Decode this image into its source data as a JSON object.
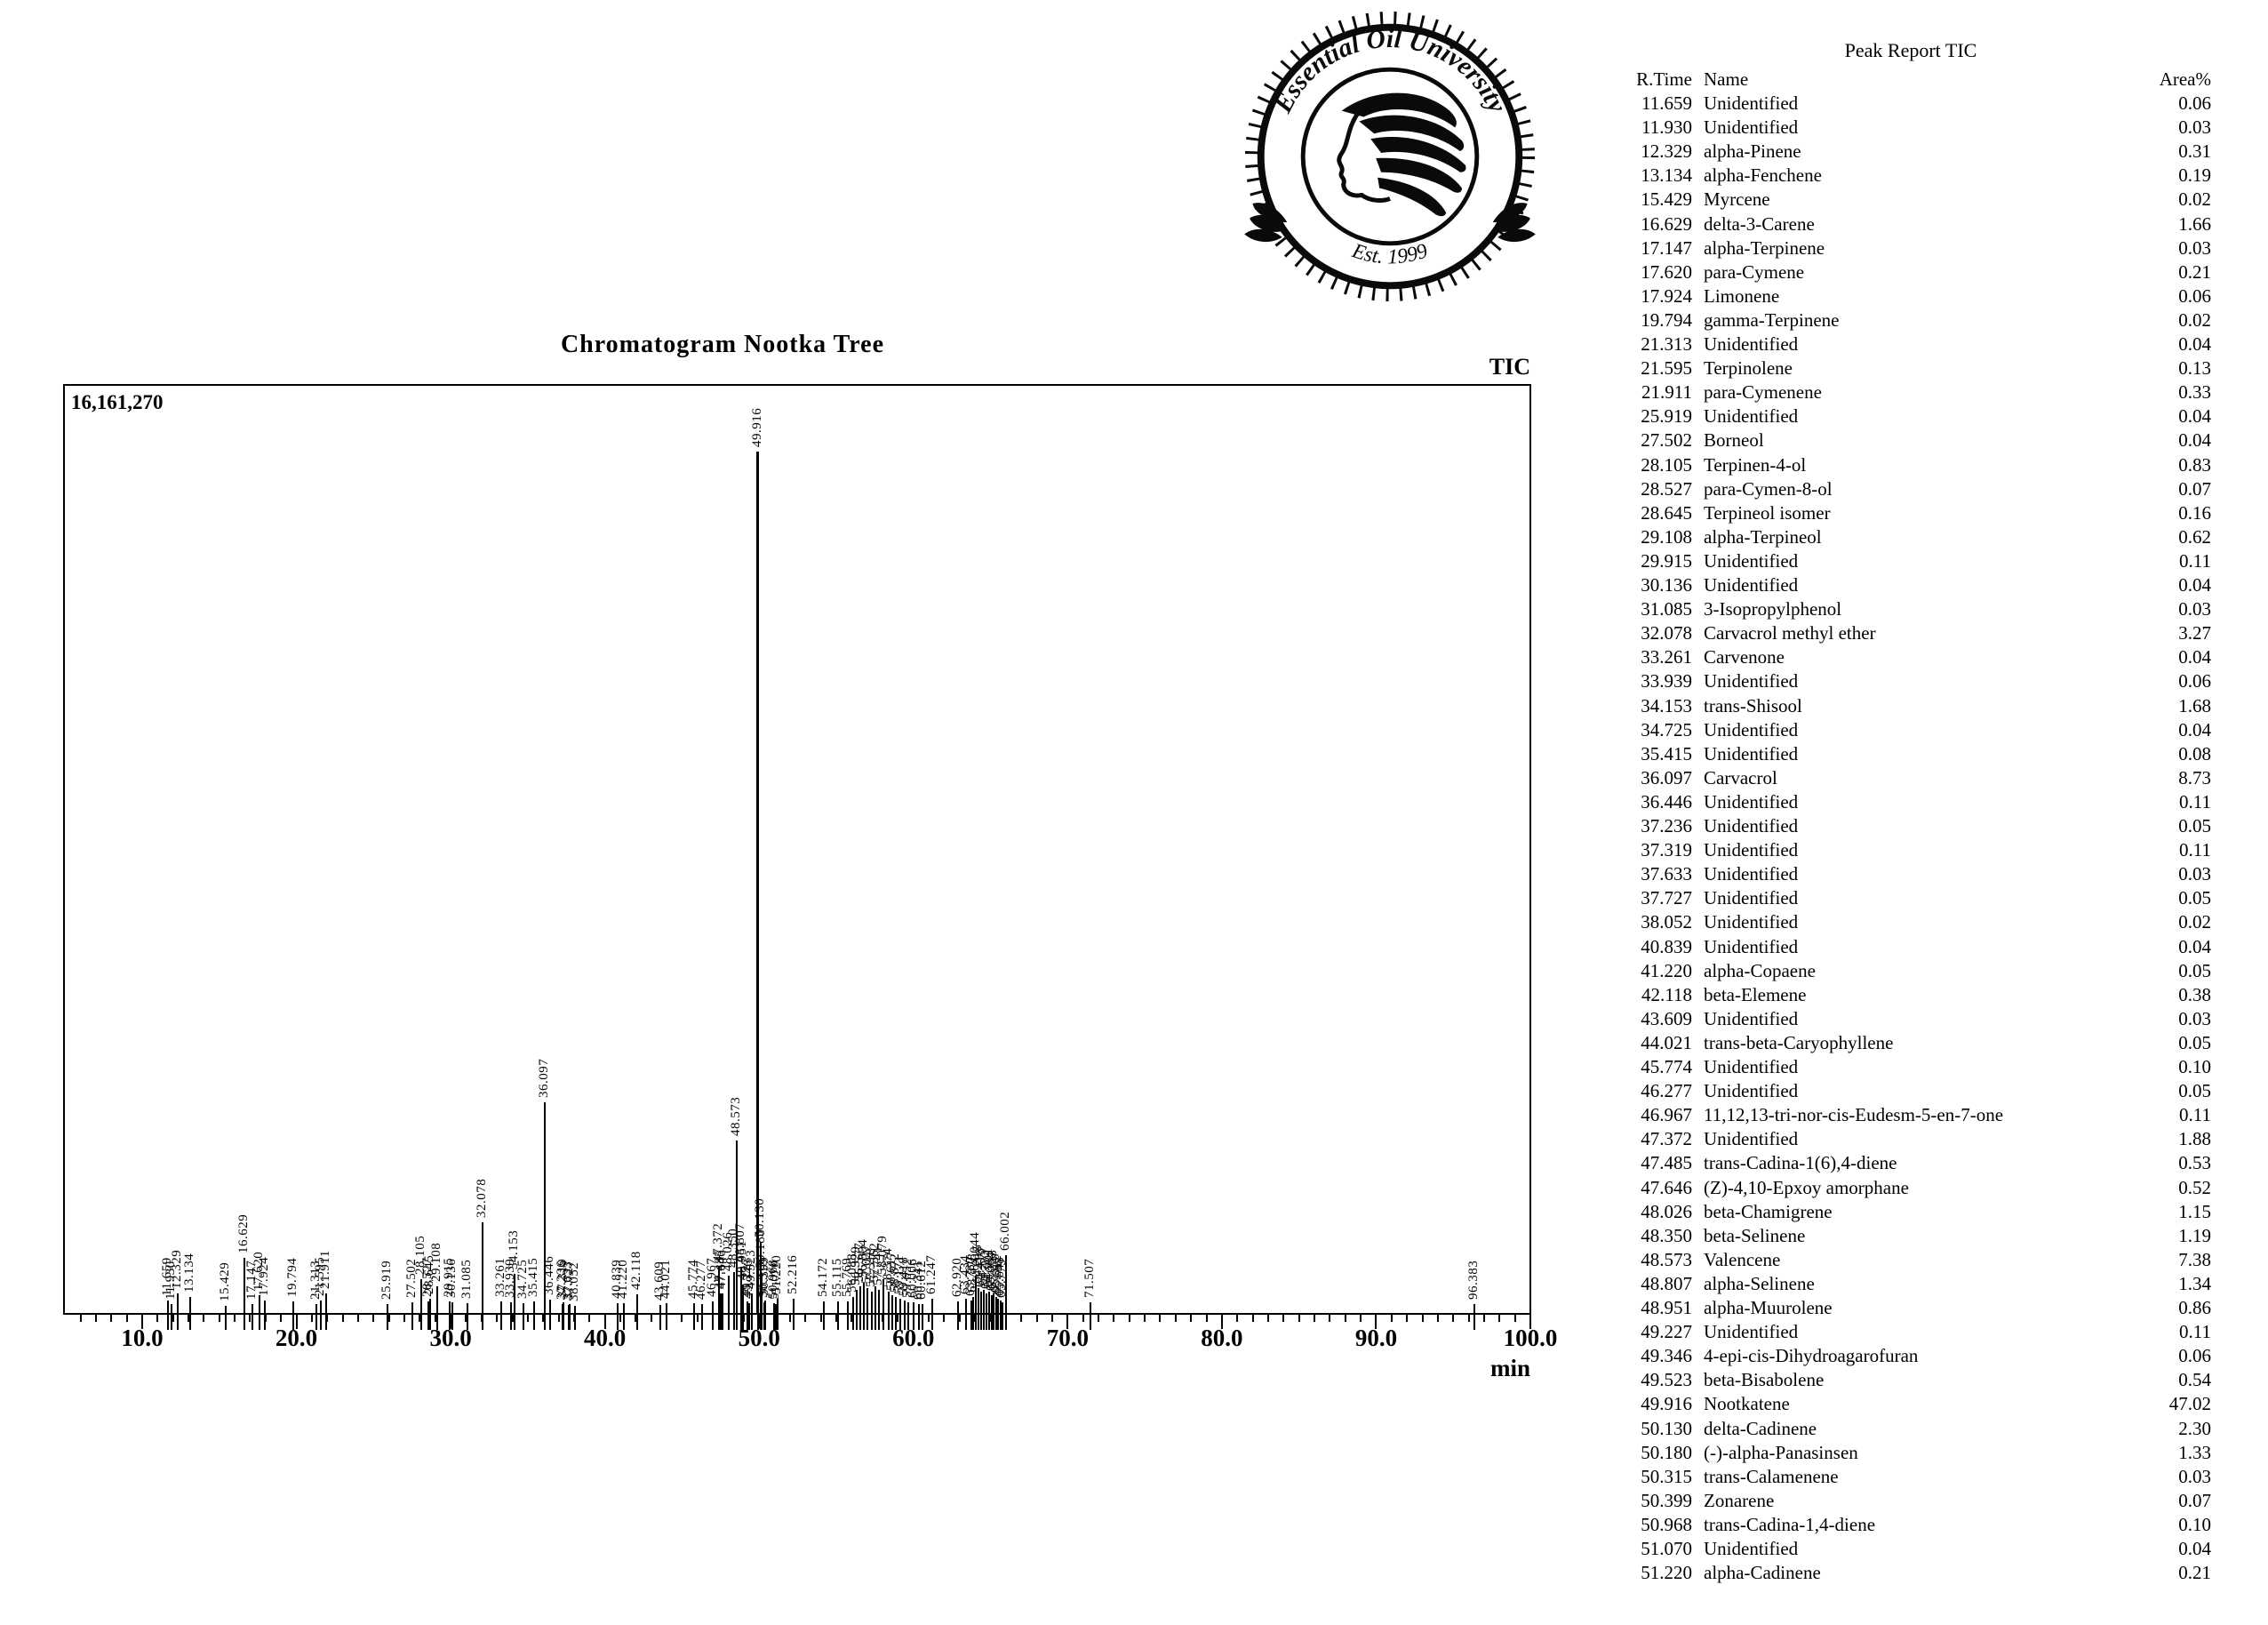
{
  "logo": {
    "arc_text": "Essential Oil University",
    "subtext": "Est. 1999"
  },
  "report": {
    "title": "Peak Report TIC",
    "columns": {
      "rtime": "R.Time",
      "name": "Name",
      "area": "Area%"
    },
    "rows": [
      {
        "rt": "11.659",
        "name": "Unidentified",
        "area": "0.06"
      },
      {
        "rt": "11.930",
        "name": "Unidentified",
        "area": "0.03"
      },
      {
        "rt": "12.329",
        "name": "alpha-Pinene",
        "area": "0.31"
      },
      {
        "rt": "13.134",
        "name": "alpha-Fenchene",
        "area": "0.19"
      },
      {
        "rt": "15.429",
        "name": "Myrcene",
        "area": "0.02"
      },
      {
        "rt": "16.629",
        "name": "delta-3-Carene",
        "area": "1.66"
      },
      {
        "rt": "17.147",
        "name": "alpha-Terpinene",
        "area": "0.03"
      },
      {
        "rt": "17.620",
        "name": "para-Cymene",
        "area": "0.21"
      },
      {
        "rt": "17.924",
        "name": "Limonene",
        "area": "0.06"
      },
      {
        "rt": "19.794",
        "name": "gamma-Terpinene",
        "area": "0.02"
      },
      {
        "rt": "21.313",
        "name": "Unidentified",
        "area": "0.04"
      },
      {
        "rt": "21.595",
        "name": "Terpinolene",
        "area": "0.13"
      },
      {
        "rt": "21.911",
        "name": "para-Cymenene",
        "area": "0.33"
      },
      {
        "rt": "25.919",
        "name": "Unidentified",
        "area": "0.04"
      },
      {
        "rt": "27.502",
        "name": "Borneol",
        "area": "0.04"
      },
      {
        "rt": "28.105",
        "name": "Terpinen-4-ol",
        "area": "0.83"
      },
      {
        "rt": "28.527",
        "name": "para-Cymen-8-ol",
        "area": "0.07"
      },
      {
        "rt": "28.645",
        "name": "Terpineol isomer",
        "area": "0.16"
      },
      {
        "rt": "29.108",
        "name": "alpha-Terpineol",
        "area": "0.62"
      },
      {
        "rt": "29.915",
        "name": "Unidentified",
        "area": "0.11"
      },
      {
        "rt": "30.136",
        "name": "Unidentified",
        "area": "0.04"
      },
      {
        "rt": "31.085",
        "name": "3-Isopropylphenol",
        "area": "0.03"
      },
      {
        "rt": "32.078",
        "name": "Carvacrol methyl ether",
        "area": "3.27"
      },
      {
        "rt": "33.261",
        "name": "Carvenone",
        "area": "0.04"
      },
      {
        "rt": "33.939",
        "name": "Unidentified",
        "area": "0.06"
      },
      {
        "rt": "34.153",
        "name": "trans-Shisool",
        "area": "1.68"
      },
      {
        "rt": "34.725",
        "name": "Unidentified",
        "area": "0.04"
      },
      {
        "rt": "35.415",
        "name": "Unidentified",
        "area": "0.08"
      },
      {
        "rt": "36.097",
        "name": "Carvacrol",
        "area": "8.73"
      },
      {
        "rt": "36.446",
        "name": "Unidentified",
        "area": "0.11"
      },
      {
        "rt": "37.236",
        "name": "Unidentified",
        "area": "0.05"
      },
      {
        "rt": "37.319",
        "name": "Unidentified",
        "area": "0.11"
      },
      {
        "rt": "37.633",
        "name": "Unidentified",
        "area": "0.03"
      },
      {
        "rt": "37.727",
        "name": "Unidentified",
        "area": "0.05"
      },
      {
        "rt": "38.052",
        "name": "Unidentified",
        "area": "0.02"
      },
      {
        "rt": "40.839",
        "name": "Unidentified",
        "area": "0.04"
      },
      {
        "rt": "41.220",
        "name": "alpha-Copaene",
        "area": "0.05"
      },
      {
        "rt": "42.118",
        "name": "beta-Elemene",
        "area": "0.38"
      },
      {
        "rt": "43.609",
        "name": "Unidentified",
        "area": "0.03"
      },
      {
        "rt": "44.021",
        "name": "trans-beta-Caryophyllene",
        "area": "0.05"
      },
      {
        "rt": "45.774",
        "name": "Unidentified",
        "area": "0.10"
      },
      {
        "rt": "46.277",
        "name": "Unidentified",
        "area": "0.05"
      },
      {
        "rt": "46.967",
        "name": "11,12,13-tri-nor-cis-Eudesm-5-en-7-one",
        "area": "0.11"
      },
      {
        "rt": "47.372",
        "name": "Unidentified",
        "area": "1.88"
      },
      {
        "rt": "47.485",
        "name": "trans-Cadina-1(6),4-diene",
        "area": "0.53"
      },
      {
        "rt": "47.646",
        "name": "(Z)-4,10-Epxoy amorphane",
        "area": "0.52"
      },
      {
        "rt": "48.026",
        "name": "beta-Chamigrene",
        "area": "1.15"
      },
      {
        "rt": "48.350",
        "name": "beta-Selinene",
        "area": "1.19"
      },
      {
        "rt": "48.573",
        "name": "Valencene",
        "area": "7.38"
      },
      {
        "rt": "48.807",
        "name": "alpha-Selinene",
        "area": "1.34"
      },
      {
        "rt": "48.951",
        "name": "alpha-Muurolene",
        "area": "0.86"
      },
      {
        "rt": "49.227",
        "name": "Unidentified",
        "area": "0.11"
      },
      {
        "rt": "49.346",
        "name": "4-epi-cis-Dihydroagarofuran",
        "area": "0.06"
      },
      {
        "rt": "49.523",
        "name": "beta-Bisabolene",
        "area": "0.54"
      },
      {
        "rt": "49.916",
        "name": "Nootkatene",
        "area": "47.02"
      },
      {
        "rt": "50.130",
        "name": "delta-Cadinene",
        "area": "2.30"
      },
      {
        "rt": "50.180",
        "name": "(-)-alpha-Panasinsen",
        "area": "1.33"
      },
      {
        "rt": "50.315",
        "name": "trans-Calamenene",
        "area": "0.03"
      },
      {
        "rt": "50.399",
        "name": "Zonarene",
        "area": "0.07"
      },
      {
        "rt": "50.968",
        "name": "trans-Cadina-1,4-diene",
        "area": "0.10"
      },
      {
        "rt": "51.070",
        "name": "Unidentified",
        "area": "0.04"
      },
      {
        "rt": "51.220",
        "name": "alpha-Cadinene",
        "area": "0.21"
      }
    ]
  },
  "chart": {
    "title": "Chromatogram Nootka Tree",
    "series_label": "TIC",
    "y_max_label": "16,161,270",
    "x_unit": "min"
  },
  "chart_data": {
    "type": "line",
    "subtype": "chromatogram-peaks",
    "title": "Chromatogram Nootka Tree",
    "series": "TIC",
    "xlabel": "min",
    "x_range": [
      4.9,
      100.0
    ],
    "y_range": [
      0,
      16161270
    ],
    "x_major_ticks": [
      10,
      20,
      30,
      40,
      50,
      60,
      70,
      80,
      90,
      100
    ],
    "grid": false,
    "peaks": [
      {
        "rt": 11.659,
        "i": 217000,
        "lbl": true
      },
      {
        "rt": 11.93,
        "i": 155000,
        "lbl": true
      },
      {
        "rt": 12.329,
        "i": 341000,
        "lbl": true
      },
      {
        "rt": 13.134,
        "i": 279000,
        "lbl": true
      },
      {
        "rt": 15.429,
        "i": 124000,
        "lbl": true
      },
      {
        "rt": 16.629,
        "i": 960000,
        "lbl": true
      },
      {
        "rt": 17.147,
        "i": 155000,
        "lbl": true
      },
      {
        "rt": 17.62,
        "i": 310000,
        "lbl": true
      },
      {
        "rt": 17.924,
        "i": 217000,
        "lbl": true
      },
      {
        "rt": 19.794,
        "i": 201000,
        "lbl": true
      },
      {
        "rt": 21.313,
        "i": 155000,
        "lbl": true
      },
      {
        "rt": 21.595,
        "i": 217000,
        "lbl": true
      },
      {
        "rt": 21.911,
        "i": 341000,
        "lbl": true
      },
      {
        "rt": 25.919,
        "i": 155000,
        "lbl": true
      },
      {
        "rt": 27.502,
        "i": 186000,
        "lbl": true
      },
      {
        "rt": 28.105,
        "i": 588000,
        "lbl": true
      },
      {
        "rt": 28.527,
        "i": 201000,
        "lbl": true
      },
      {
        "rt": 28.645,
        "i": 248000,
        "lbl": true
      },
      {
        "rt": 29.108,
        "i": 464000,
        "lbl": true
      },
      {
        "rt": 29.915,
        "i": 201000,
        "lbl": true
      },
      {
        "rt": 30.136,
        "i": 186000,
        "lbl": true
      },
      {
        "rt": 31.085,
        "i": 170000,
        "lbl": true
      },
      {
        "rt": 32.078,
        "i": 1579000,
        "lbl": true
      },
      {
        "rt": 33.261,
        "i": 201000,
        "lbl": true
      },
      {
        "rt": 33.939,
        "i": 186000,
        "lbl": true
      },
      {
        "rt": 34.153,
        "i": 681000,
        "lbl": true
      },
      {
        "rt": 34.725,
        "i": 170000,
        "lbl": true
      },
      {
        "rt": 35.415,
        "i": 201000,
        "lbl": true
      },
      {
        "rt": 36.097,
        "i": 3669000,
        "lbl": true
      },
      {
        "rt": 36.446,
        "i": 232000,
        "lbl": true
      },
      {
        "rt": 37.236,
        "i": 155000,
        "lbl": true
      },
      {
        "rt": 37.319,
        "i": 186000,
        "lbl": true
      },
      {
        "rt": 37.633,
        "i": 139000,
        "lbl": true
      },
      {
        "rt": 37.727,
        "i": 155000,
        "lbl": true
      },
      {
        "rt": 38.052,
        "i": 124000,
        "lbl": true
      },
      {
        "rt": 40.839,
        "i": 170000,
        "lbl": true
      },
      {
        "rt": 41.22,
        "i": 170000,
        "lbl": true
      },
      {
        "rt": 42.118,
        "i": 325000,
        "lbl": true
      },
      {
        "rt": 43.609,
        "i": 139000,
        "lbl": true
      },
      {
        "rt": 44.021,
        "i": 170000,
        "lbl": true
      },
      {
        "rt": 45.774,
        "i": 170000,
        "lbl": true
      },
      {
        "rt": 46.277,
        "i": 155000,
        "lbl": true
      },
      {
        "rt": 46.967,
        "i": 201000,
        "lbl": true
      },
      {
        "rt": 47.372,
        "i": 805000,
        "lbl": true
      },
      {
        "rt": 47.485,
        "i": 341000,
        "lbl": true
      },
      {
        "rt": 47.646,
        "i": 341000,
        "lbl": true
      },
      {
        "rt": 48.026,
        "i": 650000,
        "lbl": true
      },
      {
        "rt": 48.35,
        "i": 712000,
        "lbl": true
      },
      {
        "rt": 48.573,
        "i": 3003000,
        "lbl": true
      },
      {
        "rt": 48.807,
        "i": 805000,
        "lbl": true
      },
      {
        "rt": 48.951,
        "i": 495000,
        "lbl": true
      },
      {
        "rt": 49.227,
        "i": 201000,
        "lbl": true
      },
      {
        "rt": 49.346,
        "i": 170000,
        "lbl": true
      },
      {
        "rt": 49.523,
        "i": 341000,
        "lbl": true
      },
      {
        "rt": 49.916,
        "i": 15000000,
        "lbl": true
      },
      {
        "rt": 50.13,
        "i": 1238000,
        "lbl": true
      },
      {
        "rt": 50.18,
        "i": 697000,
        "lbl": true
      },
      {
        "rt": 50.315,
        "i": 186000,
        "lbl": true
      },
      {
        "rt": 50.399,
        "i": 217000,
        "lbl": true
      },
      {
        "rt": 50.968,
        "i": 170000,
        "lbl": true
      },
      {
        "rt": 51.07,
        "i": 155000,
        "lbl": true
      },
      {
        "rt": 51.22,
        "i": 248000,
        "lbl": true
      },
      {
        "rt": 52.216,
        "i": 248000,
        "lbl": true
      },
      {
        "rt": 54.172,
        "i": 201000,
        "lbl": true
      },
      {
        "rt": 55.115,
        "i": 201000,
        "lbl": true
      },
      {
        "rt": 55.769,
        "i": 201000,
        "lbl": true
      },
      {
        "rt": 56.088,
        "i": 279000,
        "lbl": true
      },
      {
        "rt": 56.329,
        "i": 402000,
        "lbl": true
      },
      {
        "rt": 56.577,
        "i": 464000,
        "lbl": true
      },
      {
        "rt": 56.804,
        "i": 526000,
        "lbl": true
      },
      {
        "rt": 57.027,
        "i": 433000,
        "lbl": true
      },
      {
        "rt": 57.318,
        "i": 371000,
        "lbl": true
      },
      {
        "rt": 57.562,
        "i": 464000,
        "lbl": true
      },
      {
        "rt": 57.741,
        "i": 402000,
        "lbl": true
      },
      {
        "rt": 58.079,
        "i": 588000,
        "lbl": true
      },
      {
        "rt": 58.374,
        "i": 371000,
        "lbl": true
      },
      {
        "rt": 58.617,
        "i": 310000,
        "lbl": true
      },
      {
        "rt": 58.872,
        "i": 279000,
        "lbl": true
      },
      {
        "rt": 59.171,
        "i": 248000,
        "lbl": true
      },
      {
        "rt": 59.418,
        "i": 217000,
        "lbl": true
      },
      {
        "rt": 59.652,
        "i": 186000,
        "lbl": true
      },
      {
        "rt": 60.006,
        "i": 186000,
        "lbl": true
      },
      {
        "rt": 60.341,
        "i": 155000,
        "lbl": true
      },
      {
        "rt": 60.612,
        "i": 155000,
        "lbl": true
      },
      {
        "rt": 61.247,
        "i": 248000,
        "lbl": true
      },
      {
        "rt": 62.92,
        "i": 201000,
        "lbl": true
      },
      {
        "rt": 63.434,
        "i": 248000,
        "lbl": true
      },
      {
        "rt": 63.73,
        "i": 217000,
        "lbl": true
      },
      {
        "rt": 63.878,
        "i": 279000,
        "lbl": true
      },
      {
        "rt": 64.044,
        "i": 650000,
        "lbl": true
      },
      {
        "rt": 64.215,
        "i": 433000,
        "lbl": true
      },
      {
        "rt": 64.418,
        "i": 371000,
        "lbl": true
      },
      {
        "rt": 64.577,
        "i": 402000,
        "lbl": true
      },
      {
        "rt": 64.733,
        "i": 341000,
        "lbl": true
      },
      {
        "rt": 64.901,
        "i": 371000,
        "lbl": true
      },
      {
        "rt": 65.064,
        "i": 310000,
        "lbl": true
      },
      {
        "rt": 65.223,
        "i": 341000,
        "lbl": true
      },
      {
        "rt": 65.37,
        "i": 279000,
        "lbl": true
      },
      {
        "rt": 65.512,
        "i": 248000,
        "lbl": true
      },
      {
        "rt": 65.648,
        "i": 217000,
        "lbl": true
      },
      {
        "rt": 65.779,
        "i": 186000,
        "lbl": true
      },
      {
        "rt": 66.002,
        "i": 1006000,
        "lbl": true
      },
      {
        "rt": 71.507,
        "i": 186000,
        "lbl": true
      },
      {
        "rt": 96.383,
        "i": 155000,
        "lbl": true
      }
    ]
  }
}
